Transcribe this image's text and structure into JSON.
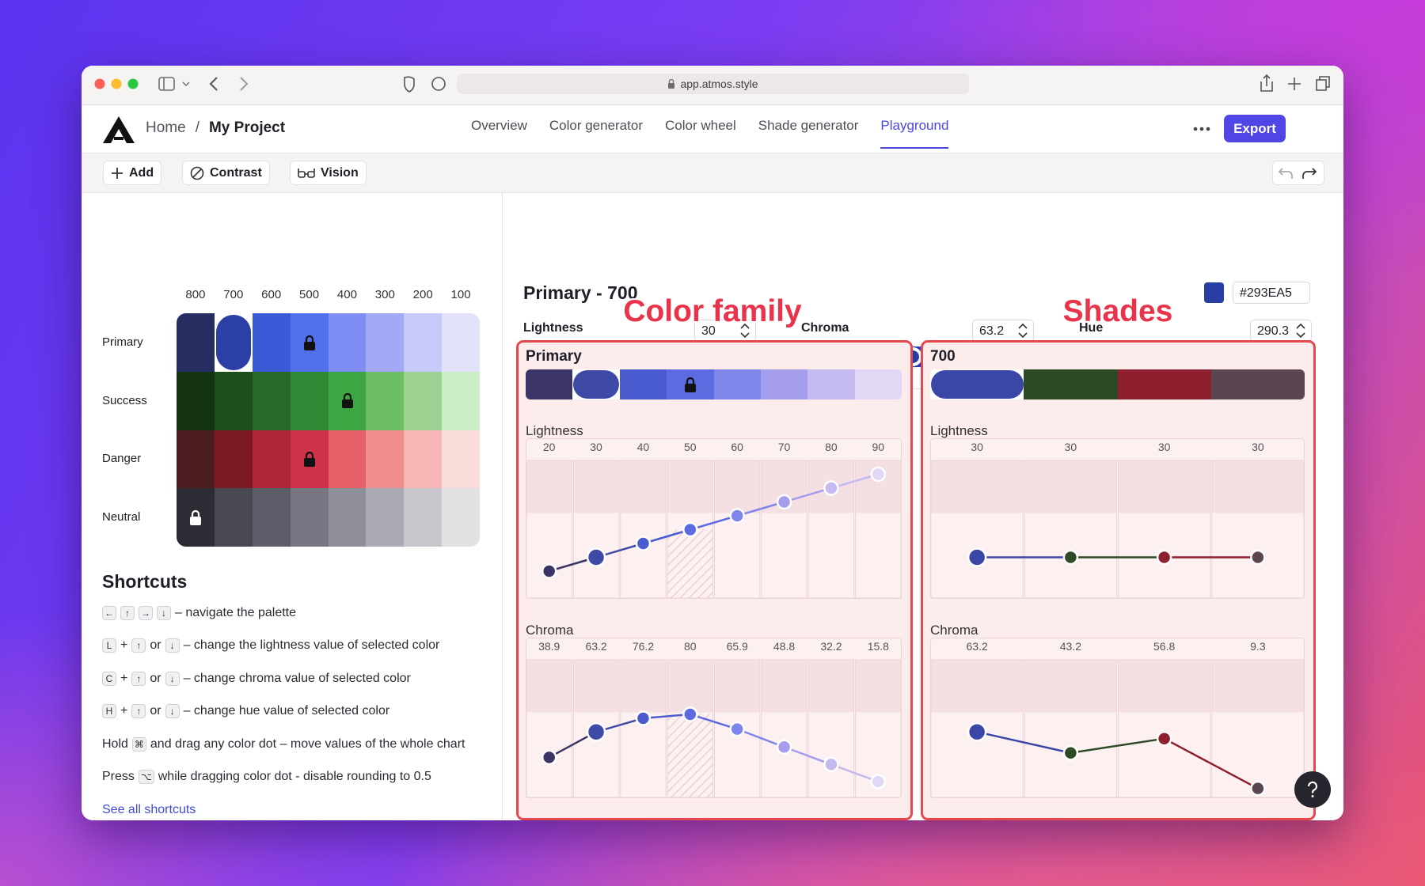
{
  "browser": {
    "url": "app.atmos.style"
  },
  "nav": {
    "home": "Home",
    "separator": "/",
    "project": "My Project",
    "tabs": [
      "Overview",
      "Color generator",
      "Color wheel",
      "Shade generator",
      "Playground"
    ],
    "active_tab": 4,
    "export": "Export"
  },
  "toolbar": {
    "buttons": [
      "Add",
      "Contrast",
      "Vision"
    ]
  },
  "palette": {
    "columns": [
      "800",
      "700",
      "600",
      "500",
      "400",
      "300",
      "200",
      "100"
    ],
    "selected": [
      0,
      1
    ],
    "rows": [
      {
        "name": "Primary",
        "lock": 3,
        "colors": [
          "#262d61",
          "#2b3fa6",
          "#3a5ad8",
          "#5070ec",
          "#7f8ef5",
          "#a3a9f7",
          "#c7c9f9",
          "#e2e3fb"
        ]
      },
      {
        "name": "Success",
        "lock": 4,
        "colors": [
          "#133313",
          "#1c4f1c",
          "#256b27",
          "#2f8834",
          "#3ea543",
          "#6bbe63",
          "#9cd392",
          "#cbeec6"
        ]
      },
      {
        "name": "Danger",
        "lock": 3,
        "colors": [
          "#4b1c20",
          "#7b1a25",
          "#ae2536",
          "#cc3348",
          "#e56068",
          "#f08d8f",
          "#f6b6b5",
          "#fadcdb"
        ]
      },
      {
        "name": "Neutral",
        "lock": 0,
        "colors": [
          "#2c2c35",
          "#484852",
          "#5d5d6a",
          "#777784",
          "#8f8f9a",
          "#aaaab2",
          "#c6c6cc",
          "#e1e1e4"
        ]
      }
    ]
  },
  "shortcuts": {
    "title": "Shortcuts",
    "items": [
      [
        {
          "key": "←"
        },
        {
          "key": "↑"
        },
        {
          "key": "→"
        },
        {
          "key": "↓"
        },
        {
          "text": "– navigate the palette"
        }
      ],
      [
        {
          "key": "L"
        },
        {
          "text": "+"
        },
        {
          "key": "↑"
        },
        {
          "text": "or"
        },
        {
          "key": "↓"
        },
        {
          "text": "– change the lightness value of selected color"
        }
      ],
      [
        {
          "key": "C"
        },
        {
          "text": "+"
        },
        {
          "key": "↑"
        },
        {
          "text": "or"
        },
        {
          "key": "↓"
        },
        {
          "text": "– change chroma value of selected color"
        }
      ],
      [
        {
          "key": "H"
        },
        {
          "text": "+"
        },
        {
          "key": "↑"
        },
        {
          "text": "or"
        },
        {
          "key": "↓"
        },
        {
          "text": "– change hue value of selected color"
        }
      ],
      [
        {
          "text": "Hold"
        },
        {
          "key": "⌘"
        },
        {
          "text": "and drag any color dot – move values of the whole chart"
        }
      ],
      [
        {
          "text": "Press"
        },
        {
          "key": "⌥"
        },
        {
          "text": "while dragging color dot - disable rounding to 0.5"
        }
      ]
    ],
    "link": "See all shortcuts"
  },
  "editor": {
    "title": "Primary - 700",
    "hex": "#293EA5",
    "sliders": [
      {
        "label": "Lightness",
        "value": 30,
        "range": [
          0,
          100
        ]
      },
      {
        "label": "Chroma",
        "value": 63.2,
        "range": [
          0,
          132
        ]
      },
      {
        "label": "Hue",
        "value": 290.3,
        "range": [
          0,
          360
        ]
      }
    ]
  },
  "annotations": [
    "Color family",
    "Shades"
  ],
  "family": {
    "title": "Primary",
    "lock": 3,
    "selected": 1,
    "colors": [
      "#3a3566",
      "#3f4aa6",
      "#4a5bd0",
      "#5c6be0",
      "#7e86ea",
      "#a49eed",
      "#c4b9f0",
      "#e0d8f4"
    ],
    "charts": [
      {
        "label": "Lightness",
        "values": [
          20,
          30,
          40,
          50,
          60,
          70,
          80,
          90
        ],
        "ylim": [
          0,
          100
        ]
      },
      {
        "label": "Chroma",
        "values": [
          38.9,
          63.2,
          76.2,
          80,
          65.9,
          48.8,
          32.2,
          15.8
        ],
        "ylim": [
          0,
          132
        ]
      }
    ]
  },
  "shades": {
    "title": "700",
    "selected": 0,
    "colors": [
      "#3a47a6",
      "#2e4a24",
      "#8e1f2e",
      "#5a4650"
    ],
    "charts": [
      {
        "label": "Lightness",
        "values": [
          30,
          30,
          30,
          30
        ],
        "ylim": [
          0,
          100
        ]
      },
      {
        "label": "Chroma",
        "values": [
          63.2,
          43.2,
          56.8,
          9.3
        ],
        "ylim": [
          0,
          132
        ]
      }
    ]
  }
}
